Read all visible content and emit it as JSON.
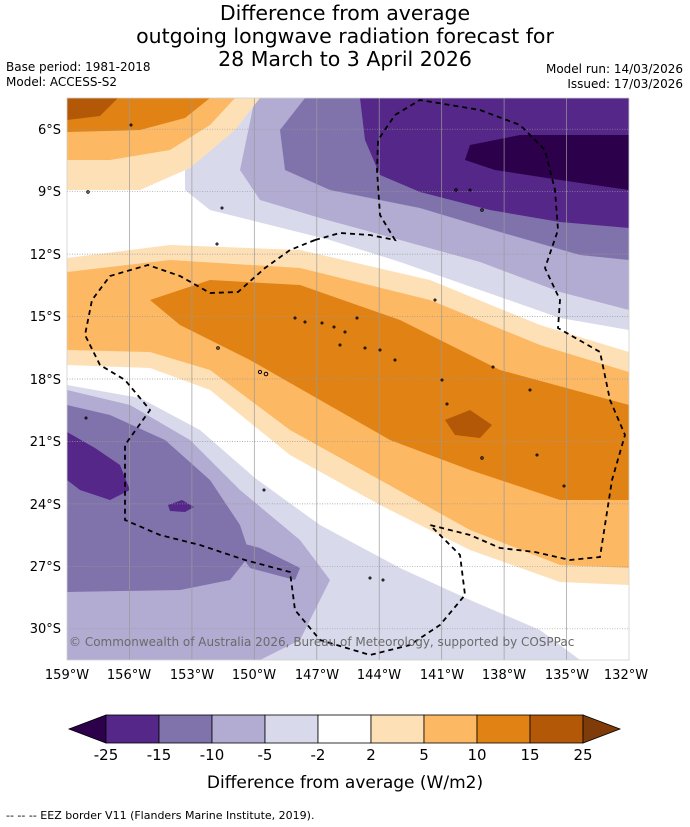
{
  "title": {
    "line1": "Difference from average",
    "line2": "outgoing longwave radiation forecast for",
    "line3": "28 March to 3 April 2026"
  },
  "meta": {
    "base_period": "Base period: 1981-2018",
    "model": "Model: ACCESS-S2",
    "model_run": "Model run: 14/03/2026",
    "issued": "Issued: 17/03/2026"
  },
  "map": {
    "credit": "© Commonwealth of Australia 2026, Bureau of Meteorology, supported by COSPPac",
    "lon_labels": [
      "159°W",
      "156°W",
      "153°W",
      "150°W",
      "147°W",
      "144°W",
      "141°W",
      "138°W",
      "135°W",
      "132°W"
    ],
    "lat_labels": [
      "6°S",
      "9°S",
      "12°S",
      "15°S",
      "18°S",
      "21°S",
      "24°S",
      "27°S",
      "30°S"
    ],
    "lon_range": [
      -159,
      -132
    ],
    "lat_range": [
      -4.5,
      -31.5
    ]
  },
  "colorbar": {
    "ticks": [
      "-25",
      "-15",
      "-10",
      "-5",
      "-2",
      "2",
      "5",
      "10",
      "15",
      "25"
    ],
    "colors": {
      "below": "#2d004b",
      "c1": "#542788",
      "c2": "#8073ac",
      "c3": "#b2abd2",
      "c4": "#d8daeb",
      "c5": "#ffffff",
      "c6": "#fee0b6",
      "c7": "#fdb863",
      "c8": "#e08214",
      "c9": "#b35806",
      "above": "#7f3b08"
    },
    "label": "Difference from average (W/m2)"
  },
  "footnote": "--  --  -- EEZ border V11 (Flanders Marine Institute, 2019)."
}
